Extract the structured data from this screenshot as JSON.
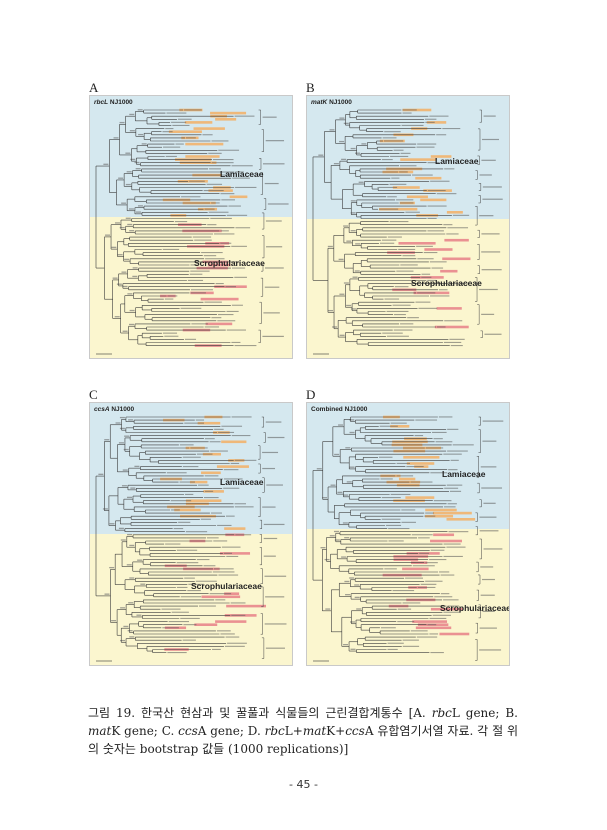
{
  "figure": {
    "panels": [
      {
        "letter": "A",
        "title": {
          "italic": "rbcL",
          "rest": " NJ1000"
        },
        "upper_family": "Lamiaceae",
        "lower_family": "Scrophulariaceae",
        "split": 0.46,
        "seed": 11
      },
      {
        "letter": "B",
        "title": {
          "italic": "matK",
          "rest": " NJ1000"
        },
        "upper_family": "Lamiaceae",
        "lower_family": "Scrophulariaceae",
        "split": 0.47,
        "seed": 23
      },
      {
        "letter": "C",
        "title": {
          "italic": "ccsA",
          "rest": " NJ1000"
        },
        "upper_family": "Lamiaceae",
        "lower_family": "Scrophulariaceae",
        "split": 0.5,
        "seed": 37
      },
      {
        "letter": "D",
        "title": {
          "italic": "",
          "rest": "Combined NJ1000"
        },
        "upper_family": "Lamiaceae",
        "lower_family": "Scrophulariaceae",
        "split": 0.48,
        "seed": 53
      }
    ],
    "colors": {
      "upper_bg": "#d5e8ef",
      "lower_bg": "#fbf6cf",
      "orange_highlight": "#f2b36b",
      "red_highlight": "#e8868b",
      "branch": "#3a3a3a"
    }
  },
  "caption": {
    "p1": "그림 19. 한국산 현삼과 및 꿀풀과 식물들의 근린결합계통수 [A. ",
    "i1": "rbc",
    "p2": "L gene; B. ",
    "i2": "mat",
    "p3": "K gene; C. ",
    "i3": "ccs",
    "p4": "A gene; D. ",
    "i4": "rbc",
    "p5": "L+",
    "i5": "mat",
    "p6": "K+",
    "i6": "ccs",
    "p7": "A 유합염기서열 자료. 각 절 위의 숫자는 bootstrap 값들 (1000 replications)]"
  },
  "page_number": "- 45 -"
}
